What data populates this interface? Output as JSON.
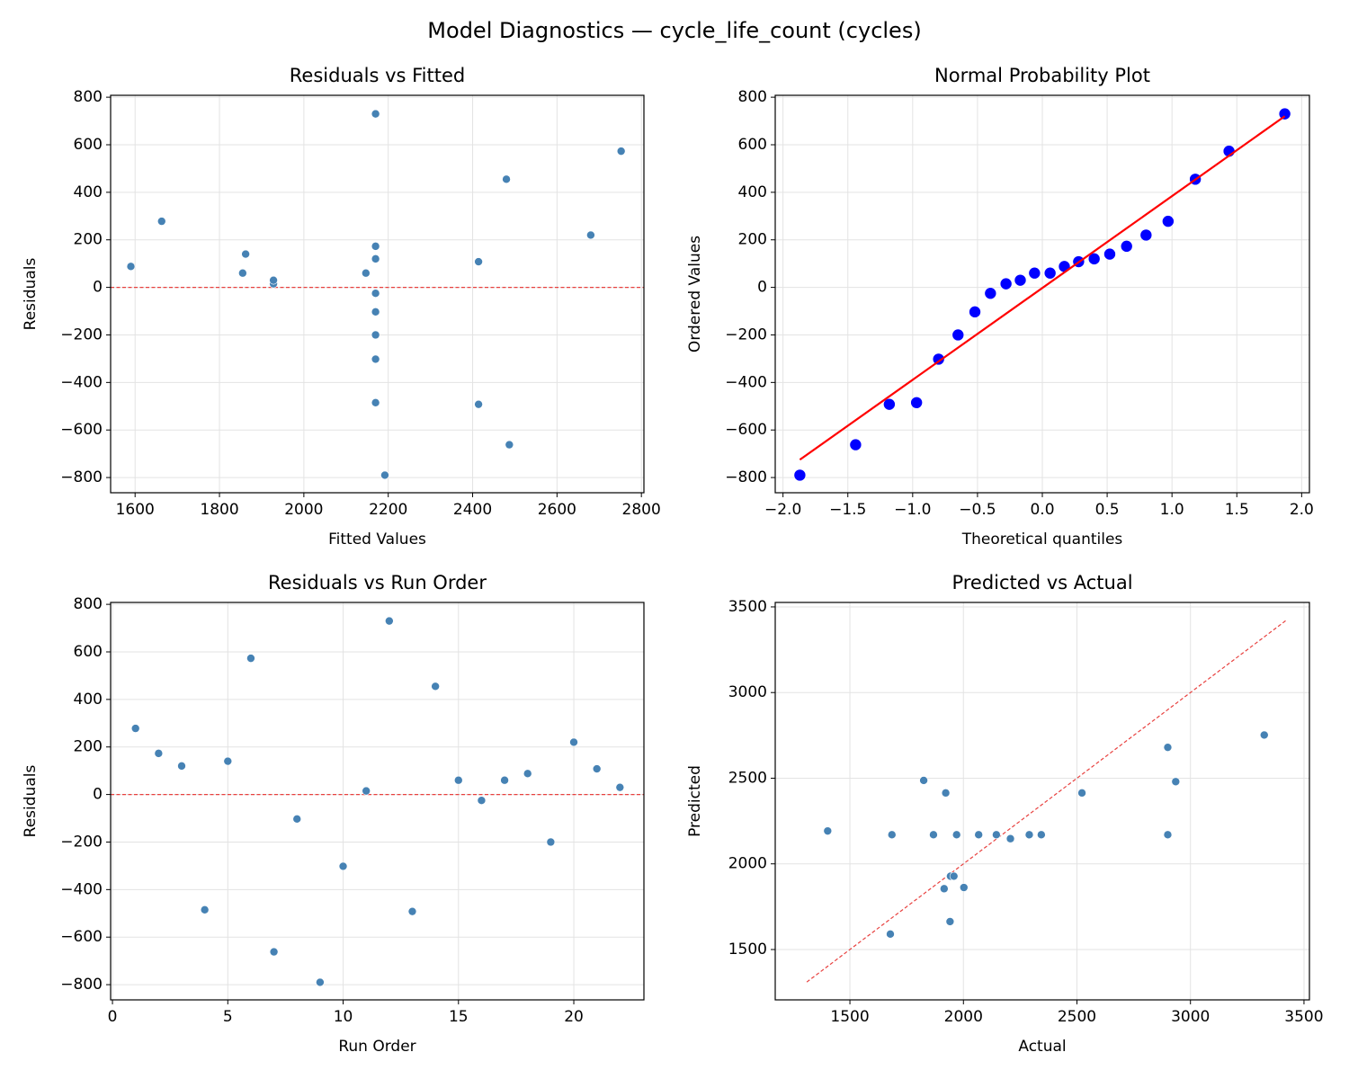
{
  "title": "Model Diagnostics — cycle_life_count (cycles)",
  "chart_data": [
    {
      "type": "scatter",
      "title": "Residuals vs Fitted",
      "x_label": "Fitted Values",
      "y_label": "Residuals",
      "color": "#4682b4",
      "grid": true,
      "x": [
        1663,
        2170,
        2170,
        2170,
        1862,
        2752,
        2487,
        2170,
        2192,
        2170,
        1928,
        2170,
        2414,
        2480,
        2147,
        2170,
        1855,
        1590,
        2170,
        2680,
        2414,
        1928
      ],
      "y": [
        278,
        173,
        120,
        -485,
        140,
        573,
        -662,
        -103,
        -790,
        -302,
        15,
        730,
        -492,
        455,
        60,
        -25,
        60,
        88,
        -200,
        220,
        108,
        30
      ],
      "xlim": [
        1542,
        2806
      ],
      "ylim": [
        -864,
        808
      ],
      "xticks": [
        1600,
        1800,
        2000,
        2200,
        2400,
        2600,
        2800
      ],
      "yticks": [
        {
          "value": -800,
          "label": "−800"
        },
        {
          "value": -600,
          "label": "−600"
        },
        {
          "value": -400,
          "label": "−400"
        },
        {
          "value": -200,
          "label": "−200"
        },
        0,
        200,
        400,
        600,
        800
      ],
      "reference_line": {
        "y": 0,
        "color": "#e8413f"
      }
    },
    {
      "type": "scatter",
      "title": "Normal Probability Plot",
      "x_label": "Theoretical quantiles",
      "y_label": "Ordered Values",
      "color": "#0000ff",
      "grid": true,
      "x": [
        -1.87,
        -1.44,
        -1.18,
        -0.97,
        -0.8,
        -0.65,
        -0.52,
        -0.4,
        -0.28,
        -0.17,
        -0.06,
        0.06,
        0.17,
        0.28,
        0.4,
        0.52,
        0.65,
        0.8,
        0.97,
        1.18,
        1.44,
        1.87
      ],
      "y": [
        -790,
        -662,
        -492,
        -485,
        -302,
        -200,
        -103,
        -25,
        15,
        30,
        60,
        60,
        88,
        108,
        120,
        140,
        173,
        220,
        278,
        455,
        573,
        730
      ],
      "xlim": [
        -2.06,
        2.06
      ],
      "ylim": [
        -864,
        808
      ],
      "xticks": [
        {
          "value": -2,
          "label": "−2.0"
        },
        {
          "value": -1.5,
          "label": "−1.5"
        },
        {
          "value": -1,
          "label": "−1.0"
        },
        {
          "value": -0.5,
          "label": "−0.5"
        },
        {
          "value": 0,
          "label": "0.0"
        },
        0.5,
        {
          "value": 1,
          "label": "1.0"
        },
        1.5,
        {
          "value": 2,
          "label": "2.0"
        }
      ],
      "yticks": [
        {
          "value": -800,
          "label": "−800"
        },
        {
          "value": -600,
          "label": "−600"
        },
        {
          "value": -400,
          "label": "−400"
        },
        {
          "value": -200,
          "label": "−200"
        },
        0,
        200,
        400,
        600,
        800
      ],
      "fit_line": {
        "x": [
          -1.87,
          1.87
        ],
        "y": [
          -725,
          720
        ],
        "color": "#ff0000"
      }
    },
    {
      "type": "scatter",
      "title": "Residuals vs Run Order",
      "x_label": "Run Order",
      "y_label": "Residuals",
      "color": "#4682b4",
      "grid": true,
      "x": [
        1,
        2,
        3,
        4,
        5,
        6,
        7,
        8,
        9,
        10,
        11,
        12,
        13,
        14,
        15,
        16,
        17,
        18,
        19,
        20,
        21,
        22
      ],
      "y": [
        278,
        173,
        120,
        -485,
        140,
        573,
        -662,
        -103,
        -790,
        -302,
        15,
        730,
        -492,
        455,
        60,
        -25,
        60,
        88,
        -200,
        220,
        108,
        30
      ],
      "xlim": [
        -0.08,
        23.04
      ],
      "ylim": [
        -864,
        808
      ],
      "xticks": [
        0,
        5,
        10,
        15,
        20
      ],
      "yticks": [
        {
          "value": -800,
          "label": "−800"
        },
        {
          "value": -600,
          "label": "−600"
        },
        {
          "value": -400,
          "label": "−400"
        },
        {
          "value": -200,
          "label": "−200"
        },
        0,
        200,
        400,
        600,
        800
      ],
      "reference_line": {
        "y": 0,
        "color": "#e8413f"
      }
    },
    {
      "type": "scatter",
      "title": "Predicted vs Actual",
      "x_label": "Actual",
      "y_label": "Predicted",
      "color": "#4682b4",
      "grid": true,
      "x": [
        1941,
        2343,
        2290,
        1685,
        2002,
        3325,
        1825,
        2067,
        1402,
        1868,
        1943,
        2900,
        1922,
        2935,
        2207,
        2145,
        1915,
        1678,
        1970,
        2900,
        2522,
        1958
      ],
      "y": [
        1663,
        2170,
        2170,
        2170,
        1862,
        2752,
        2487,
        2170,
        2192,
        2170,
        1928,
        2170,
        2414,
        2480,
        2147,
        2170,
        1855,
        1590,
        2170,
        2680,
        2414,
        1928
      ],
      "xlim": [
        1171,
        3524
      ],
      "ylim": [
        1206,
        3526
      ],
      "xticks": [
        1500,
        2000,
        2500,
        3000,
        3500
      ],
      "yticks": [
        1500,
        2000,
        2500,
        3000,
        3500
      ],
      "reference_line": {
        "x": [
          1310,
          3420
        ],
        "y": [
          1310,
          3420
        ],
        "color": "#e8413f"
      }
    }
  ]
}
